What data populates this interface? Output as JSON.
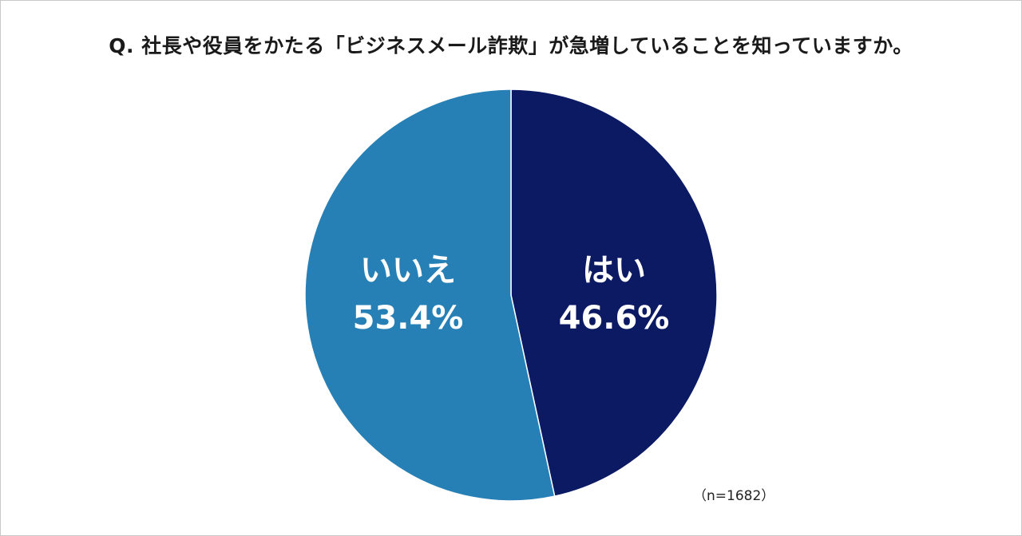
{
  "chart_data": {
    "type": "pie",
    "title": "Q. 社長や役員をかたる「ビジネスメール詐欺」が急増していることを知っていますか。",
    "slices": [
      {
        "label": "はい",
        "value": 46.6,
        "value_label": "46.6%",
        "color": "#0b1a63"
      },
      {
        "label": "いいえ",
        "value": 53.4,
        "value_label": "53.4%",
        "color": "#2680b5"
      }
    ],
    "start_angle_deg": 0,
    "direction": "clockwise",
    "sample_size": "（n=1682）"
  }
}
